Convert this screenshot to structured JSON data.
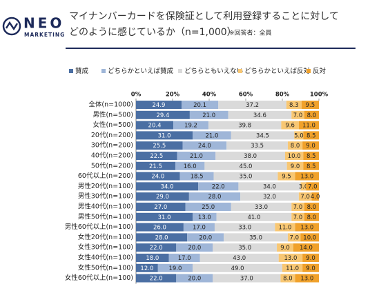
{
  "brand": {
    "name": "NEO",
    "sub": "MARKETING"
  },
  "chart_data": {
    "type": "stacked_bar_h",
    "title": "マイナンバーカードを保険証として利用登録することに対して",
    "subtitle": "どのように感じているか（n=1,000）",
    "note": "※回答者：全員",
    "categories": [
      "全体(n=1000)",
      "男性(n=500)",
      "女性(n=500)",
      "20代(n=200)",
      "30代(n=200)",
      "40代(n=200)",
      "50代(n=200)",
      "60代以上(n=200)",
      "男性20代(n=100)",
      "男性30代(n=100)",
      "男性40代(n=100)",
      "男性50代(n=100)",
      "男性60代以上(n=100)",
      "女性20代(n=100)",
      "女性30代(n=100)",
      "女性40代(n=100)",
      "女性50代(n=100)",
      "女性60代以上(n=100)"
    ],
    "xlim": [
      0,
      100
    ],
    "xticks": [
      {
        "value": 0,
        "label": "0%"
      },
      {
        "value": 20,
        "label": "20%"
      },
      {
        "value": 40,
        "label": "40%"
      },
      {
        "value": 60,
        "label": "60%"
      },
      {
        "value": 80,
        "label": "80%"
      },
      {
        "value": 100,
        "label": "100%"
      }
    ],
    "series": [
      {
        "name": "賛成",
        "color": "#4b6fa3",
        "values": [
          24.9,
          29.4,
          20.4,
          31.0,
          25.5,
          22.5,
          21.5,
          24.0,
          34.0,
          29.0,
          27.0,
          31.0,
          26.0,
          28.0,
          22.0,
          18.0,
          12.0,
          22.0
        ],
        "value_labels": [
          "24.9",
          "29.4",
          "20.4",
          "31.0",
          "25.5",
          "22.5",
          "21.5",
          "24.0",
          "34.0",
          "29.0",
          "27.0",
          "31.0",
          "26.0",
          "28.0",
          "22.0",
          "18.0",
          "12.0",
          "22.0"
        ]
      },
      {
        "name": "どちらかといえば賛成",
        "color": "#9fb6d8",
        "values": [
          20.1,
          21.0,
          19.2,
          21.0,
          24.0,
          21.0,
          16.0,
          18.5,
          22.0,
          28.0,
          25.0,
          13.0,
          17.0,
          20.0,
          20.0,
          17.0,
          19.0,
          20.0
        ],
        "value_labels": [
          "20.1",
          "21.0",
          "19.2",
          "21.0",
          "24.0",
          "21.0",
          "16.0",
          "18.5",
          "22.0",
          "28.0",
          "25.0",
          "13.0",
          "17.0",
          "20.0",
          "20.0",
          "17.0",
          "19.0",
          "20.0"
        ]
      },
      {
        "name": "どちらともいえない",
        "color": "#dadada",
        "values": [
          37.2,
          34.6,
          39.8,
          34.5,
          33.5,
          38.0,
          45.0,
          35.0,
          34.0,
          32.0,
          33.0,
          41.0,
          33.0,
          35.0,
          35.0,
          43.0,
          49.0,
          37.0
        ],
        "value_labels": [
          "37.2",
          "34.6",
          "39.8",
          "34.5",
          "33.5",
          "38.0",
          "45.0",
          "35.0",
          "34.0",
          "32.0",
          "33.0",
          "41.0",
          "33.0",
          "35.0",
          "35.0",
          "43.0",
          "49.0",
          "37.0"
        ]
      },
      {
        "name": "どちらかといえば反対",
        "color": "#f8c773",
        "values": [
          8.3,
          7.0,
          9.6,
          5.0,
          8.0,
          10.0,
          9.0,
          9.5,
          3.0,
          7.0,
          7.0,
          7.0,
          11.0,
          7.0,
          9.0,
          13.0,
          11.0,
          8.0
        ],
        "value_labels": [
          "8.3",
          "7.0",
          "9.6",
          "5.0",
          "8.0",
          "10.0",
          "9.0",
          "9.5",
          "3.0",
          "7.0",
          "7.0",
          "7.0",
          "11.0",
          "7.0",
          "9.0",
          "13.0",
          "11.0",
          "8.0"
        ]
      },
      {
        "name": "反対",
        "color": "#f0a12b",
        "values": [
          9.5,
          8.0,
          11.0,
          8.5,
          9.0,
          8.5,
          8.5,
          13.0,
          7.0,
          4.0,
          8.0,
          8.0,
          13.0,
          10.0,
          14.0,
          9.0,
          9.0,
          13.0
        ],
        "value_labels": [
          "9.5",
          "8.0",
          "11.0",
          "8.5",
          "9.0",
          "8.5",
          "8.5",
          "13.0",
          "7.0",
          "4.0",
          "8.0",
          "8.0",
          "13.0",
          "10.0",
          "14.0",
          "9.0",
          "9.0",
          "13.0"
        ]
      }
    ]
  }
}
